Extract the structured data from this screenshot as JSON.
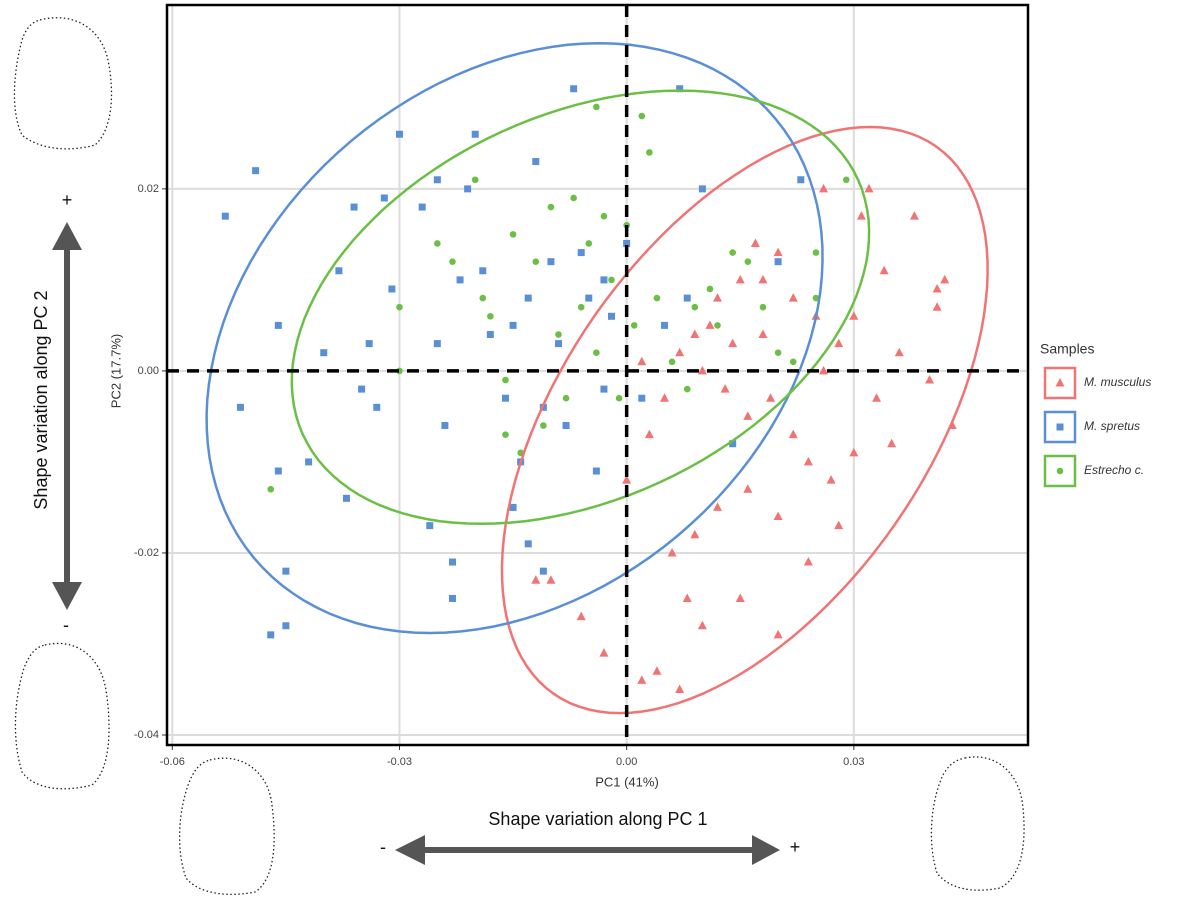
{
  "chart_data": {
    "type": "scatter",
    "x_label": "PC1 (41%)",
    "y_label": "PC2 (17.7%)",
    "xlim": [
      -0.0607,
      0.053
    ],
    "ylim": [
      -0.0411,
      0.0402
    ],
    "xticks": [
      -0.06,
      -0.03,
      {
        "value": 0,
        "label": "0.00"
      },
      0.03
    ],
    "yticks": [
      -0.04,
      -0.02,
      {
        "value": 0,
        "label": "0.00"
      },
      0.02
    ],
    "grid": true,
    "reference_lines": {
      "x": 0,
      "y": 0
    },
    "legend_title": "Samples",
    "legend_position": "right",
    "series": [
      {
        "name": "M. musculus",
        "color": "#f07474",
        "marker": "triangle",
        "x": [
          0.02,
          0.017,
          0.026,
          0.031,
          0.032,
          0.038,
          0.034,
          0.041,
          0.042,
          0.041,
          0.043,
          0.036,
          0.03,
          0.028,
          0.025,
          0.022,
          0.018,
          0.015,
          0.012,
          0.009,
          0.007,
          0.01,
          0.013,
          0.016,
          0.019,
          0.022,
          0.024,
          0.027,
          0.03,
          0.033,
          0.035,
          0.028,
          0.024,
          0.02,
          0.016,
          0.012,
          0.009,
          0.006,
          0.008,
          0.01,
          0.004,
          0.007,
          0.002,
          -0.003,
          -0.006,
          -0.01,
          -0.012,
          0.0,
          0.003,
          0.005,
          0.002,
          0.02,
          0.015,
          0.026,
          0.018,
          0.014,
          0.011,
          0.04
        ],
        "y": [
          0.013,
          0.014,
          0.02,
          0.017,
          0.02,
          0.017,
          0.011,
          0.009,
          0.01,
          0.007,
          -0.006,
          0.002,
          0.006,
          0.003,
          0.006,
          0.008,
          0.01,
          0.01,
          0.008,
          0.004,
          0.002,
          0.0,
          -0.002,
          -0.005,
          -0.003,
          -0.007,
          -0.01,
          -0.012,
          -0.009,
          -0.003,
          -0.008,
          -0.017,
          -0.021,
          -0.016,
          -0.013,
          -0.015,
          -0.018,
          -0.02,
          -0.025,
          -0.028,
          -0.033,
          -0.035,
          -0.034,
          -0.031,
          -0.027,
          -0.023,
          -0.023,
          -0.012,
          -0.007,
          -0.003,
          0.001,
          -0.029,
          -0.025,
          0.0,
          0.004,
          0.003,
          0.005,
          -0.001
        ],
        "ellipse": {
          "center": [
            0.0156,
            -0.0054
          ],
          "u": [
            0.0165,
            0.0322
          ],
          "v": [
            0.0275,
            0
          ]
        }
      },
      {
        "name": "M. spretus",
        "color": "#5a8fd6",
        "marker": "square",
        "x": [
          -0.053,
          -0.049,
          -0.046,
          -0.051,
          -0.046,
          -0.047,
          -0.045,
          -0.045,
          -0.042,
          -0.037,
          -0.038,
          -0.036,
          -0.04,
          -0.034,
          -0.033,
          -0.035,
          -0.031,
          -0.03,
          -0.032,
          -0.027,
          -0.025,
          -0.024,
          -0.025,
          -0.022,
          -0.021,
          -0.02,
          -0.019,
          -0.018,
          -0.016,
          -0.015,
          -0.013,
          -0.014,
          -0.011,
          -0.01,
          -0.009,
          -0.008,
          -0.007,
          -0.006,
          -0.005,
          -0.004,
          -0.003,
          -0.002,
          0.0,
          0.002,
          0.005,
          0.007,
          0.008,
          0.01,
          0.014,
          0.02,
          0.023,
          -0.026,
          -0.023,
          -0.023,
          -0.013,
          -0.011,
          -0.015,
          -0.012,
          -0.003
        ],
        "y": [
          0.017,
          0.022,
          0.005,
          -0.004,
          -0.011,
          -0.029,
          -0.028,
          -0.022,
          -0.01,
          -0.014,
          0.011,
          0.018,
          0.002,
          0.003,
          -0.004,
          -0.002,
          0.009,
          0.026,
          0.019,
          0.018,
          0.003,
          -0.006,
          0.021,
          0.01,
          0.02,
          0.026,
          0.011,
          0.004,
          -0.003,
          0.005,
          0.008,
          -0.01,
          -0.004,
          0.012,
          0.003,
          -0.006,
          0.031,
          0.013,
          0.008,
          -0.011,
          0.01,
          0.006,
          0.014,
          -0.003,
          0.005,
          0.031,
          0.008,
          0.02,
          -0.008,
          0.012,
          0.021,
          -0.017,
          -0.025,
          -0.021,
          -0.019,
          -0.022,
          -0.015,
          0.023,
          -0.002
        ],
        "ellipse": {
          "center": [
            -0.0148,
            0.0036
          ],
          "u": [
            0.0112,
            0.0324
          ],
          "v": [
            0.0391,
            0
          ]
        }
      },
      {
        "name": "Estrecho c.",
        "color": "#6cbf45",
        "marker": "circle",
        "x": [
          -0.047,
          -0.03,
          -0.03,
          -0.025,
          -0.023,
          -0.02,
          -0.018,
          -0.016,
          -0.015,
          -0.014,
          -0.012,
          -0.01,
          -0.009,
          -0.007,
          -0.006,
          -0.005,
          -0.004,
          -0.003,
          -0.002,
          -0.001,
          0.0,
          0.001,
          0.003,
          0.004,
          0.006,
          0.008,
          0.009,
          0.011,
          0.012,
          0.014,
          0.016,
          0.018,
          0.02,
          0.022,
          0.025,
          0.025,
          0.029,
          -0.011,
          -0.016,
          -0.008,
          -0.004,
          0.002,
          -0.019
        ],
        "y": [
          -0.013,
          0.007,
          0.0,
          0.014,
          0.012,
          0.021,
          0.006,
          -0.001,
          0.015,
          -0.009,
          0.012,
          0.018,
          0.004,
          0.019,
          0.007,
          0.014,
          0.002,
          0.017,
          0.01,
          -0.003,
          0.016,
          0.005,
          0.024,
          0.008,
          0.001,
          -0.002,
          0.007,
          0.009,
          0.005,
          0.013,
          0.012,
          0.007,
          0.002,
          0.001,
          0.013,
          0.008,
          0.021,
          -0.006,
          -0.007,
          -0.003,
          0.029,
          0.028,
          0.008
        ],
        "ellipse": {
          "center": [
            -0.0061,
            0.007
          ],
          "u": [
            0.0131,
            0.0238
          ],
          "v": [
            0.0358,
            0
          ]
        }
      }
    ],
    "annotations": {
      "pc2_axis": "Shape variation along PC 2",
      "pc2_plus": "+",
      "pc2_minus": "-",
      "pc1_axis": "Shape variation along PC 1",
      "pc1_minus": "-",
      "pc1_plus": "+"
    }
  }
}
